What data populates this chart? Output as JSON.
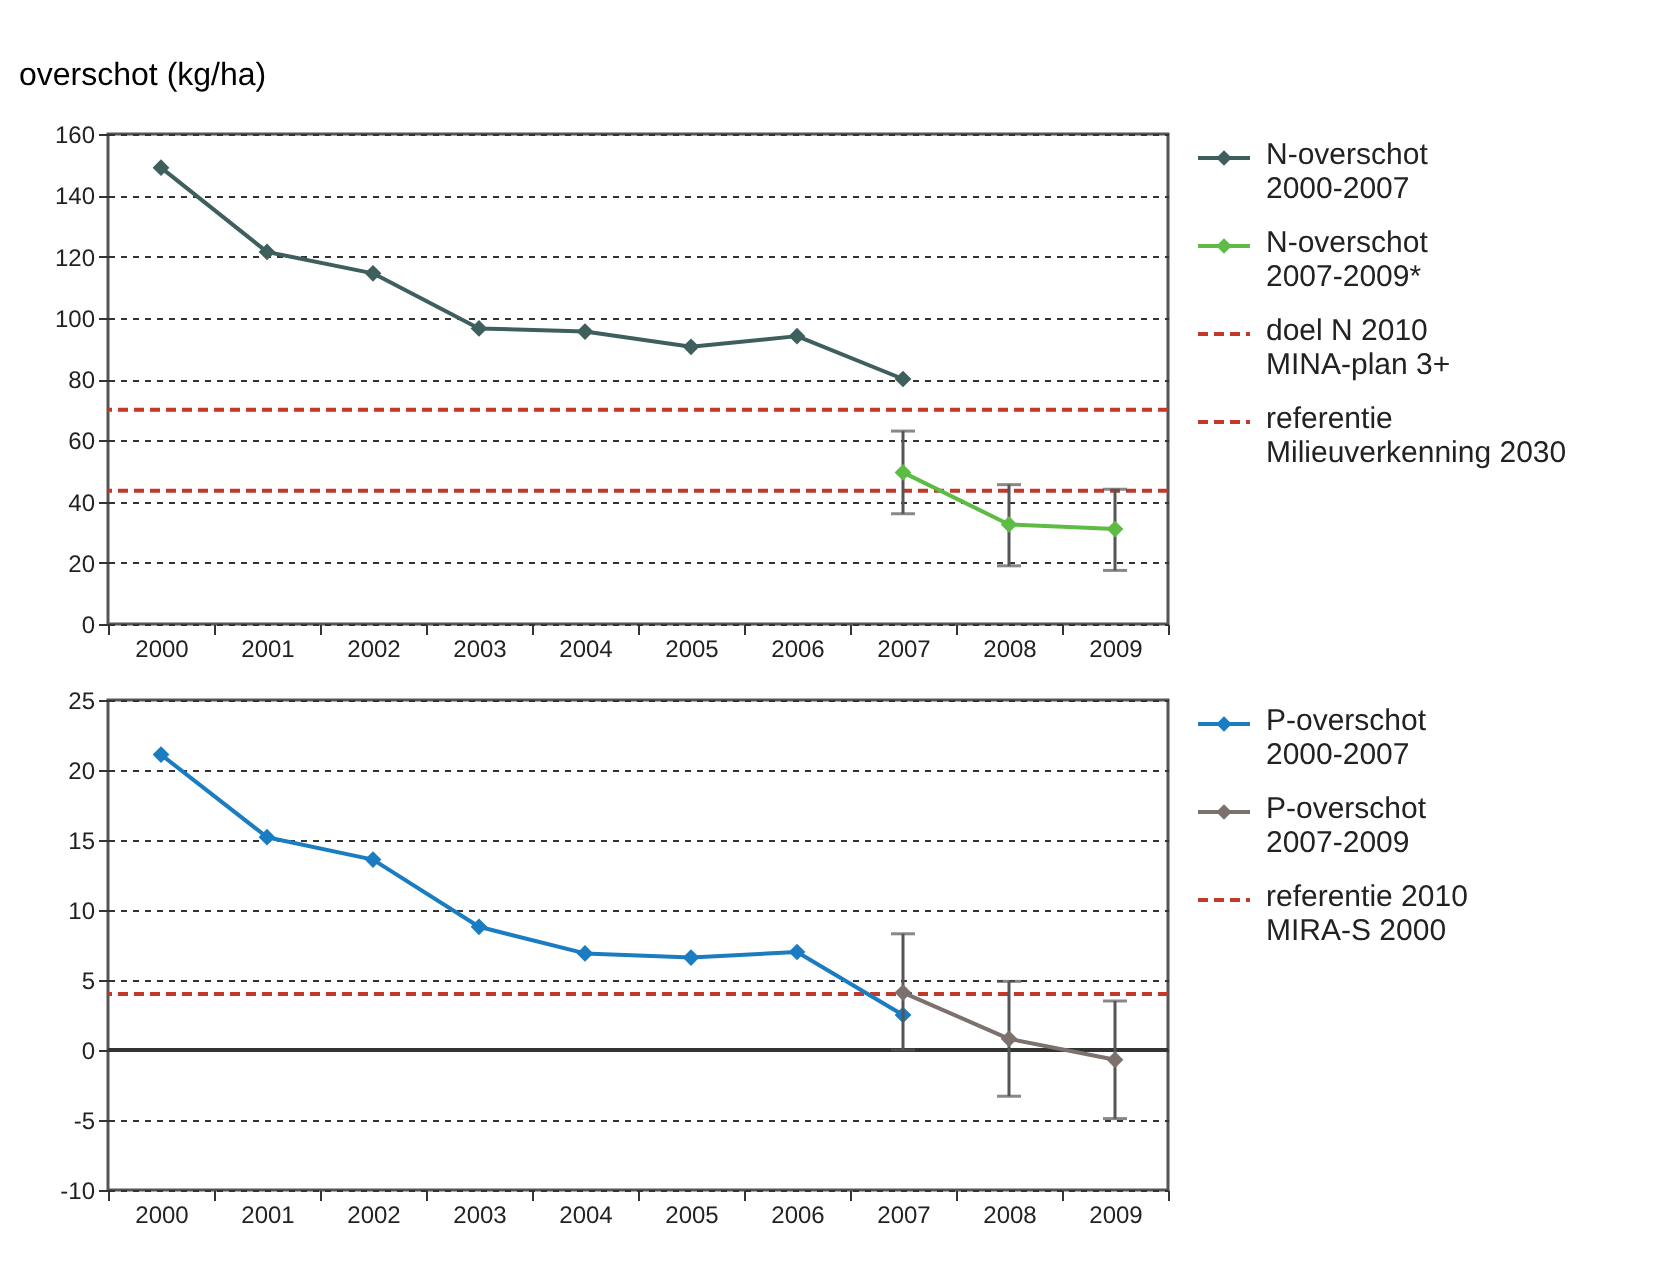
{
  "chart_data": [
    {
      "type": "line",
      "ylabel": "overschot (kg/ha)",
      "categories": [
        "2000",
        "2001",
        "2002",
        "2003",
        "2004",
        "2005",
        "2006",
        "2007",
        "2008",
        "2009"
      ],
      "ylim": [
        0,
        160
      ],
      "yticks": [
        0,
        20,
        40,
        60,
        80,
        100,
        120,
        140,
        160
      ],
      "grid": "y",
      "legend": "right",
      "marker": "diamond",
      "line_style": "solid",
      "series": [
        {
          "name": "N-overschot 2000-2007",
          "color": "#3f5f5e",
          "values": [
            149,
            121.5,
            114.5,
            96.5,
            95.5,
            90.5,
            94,
            80,
            null,
            null
          ]
        },
        {
          "name": "N-overschot 2007-2009*",
          "color": "#5dbb46",
          "values": [
            null,
            null,
            null,
            null,
            null,
            null,
            null,
            49.5,
            32.5,
            31
          ],
          "errors": [
            null,
            null,
            null,
            null,
            null,
            null,
            null,
            [
              36,
              63
            ],
            [
              19,
              45.5
            ],
            [
              17.5,
              44
            ]
          ]
        }
      ],
      "ref_lines": [
        {
          "axis": "y",
          "value": 70,
          "label": "doel N 2010 MINA-plan 3+",
          "color": "#c0392b",
          "line_style": "dashed"
        },
        {
          "axis": "y",
          "value": 43.5,
          "label": "referentie Milieuverkenning 2030",
          "color": "#c0392b",
          "line_style": "dashed"
        }
      ]
    },
    {
      "type": "line",
      "categories": [
        "2000",
        "2001",
        "2002",
        "2003",
        "2004",
        "2005",
        "2006",
        "2007",
        "2008",
        "2009"
      ],
      "ylim": [
        -10,
        25
      ],
      "yticks": [
        -10,
        -5,
        0,
        5,
        10,
        15,
        20,
        25
      ],
      "grid": "y",
      "legend": "right",
      "marker": "diamond",
      "line_style": "solid",
      "series": [
        {
          "name": "P-overschot 2000-2007",
          "color": "#1a7cc1",
          "values": [
            21.1,
            15.2,
            13.6,
            8.8,
            6.9,
            6.6,
            7,
            2.5,
            null,
            null
          ]
        },
        {
          "name": "P-overschot 2007-2009",
          "color": "#7d716d",
          "values": [
            null,
            null,
            null,
            null,
            null,
            null,
            null,
            4.1,
            0.8,
            -0.7
          ],
          "errors": [
            null,
            null,
            null,
            null,
            null,
            null,
            null,
            [
              0,
              8.3
            ],
            [
              -3.3,
              4.9
            ],
            [
              -4.9,
              3.5
            ]
          ]
        }
      ],
      "ref_lines": [
        {
          "axis": "y",
          "value": 4,
          "label": "referentie 2010 MIRA-S 2000",
          "color": "#c0392b",
          "line_style": "dashed"
        },
        {
          "axis": "y",
          "value": 0,
          "color": "#333333",
          "line_style": "solid"
        }
      ]
    }
  ]
}
